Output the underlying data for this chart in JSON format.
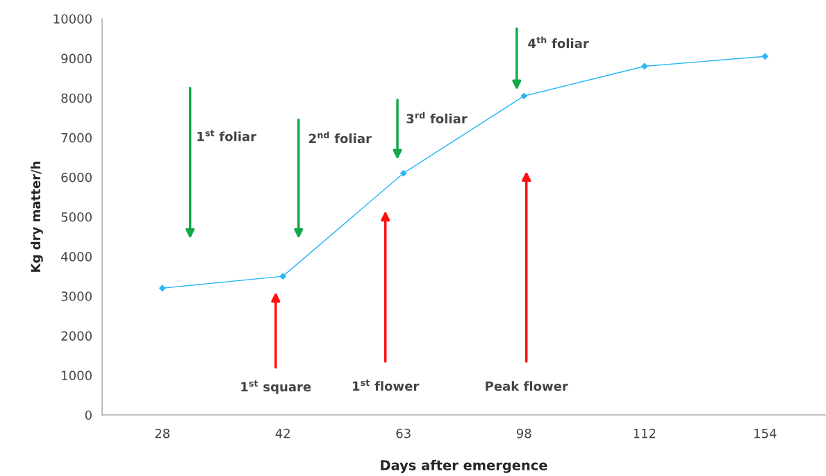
{
  "chart_data": {
    "type": "line",
    "xlabel": "Days after emergence",
    "ylabel": "Kg dry matter/h",
    "categories": [
      "28",
      "42",
      "63",
      "98",
      "112",
      "154"
    ],
    "series": [
      {
        "color": "#29b6f6",
        "values": [
          3200,
          3500,
          6100,
          8050,
          8800,
          9050
        ]
      }
    ],
    "marker": "diamond",
    "line_style": "solid",
    "ylim": [
      0,
      10000
    ],
    "yticks": [
      0,
      1000,
      2000,
      3000,
      4000,
      5000,
      6000,
      7000,
      8000,
      9000,
      10000
    ],
    "grid": false,
    "annotations": [
      "1$^{st}$ foliar",
      "2$^{nd}$ foliar",
      "3$^{rd}$ foliar",
      "4$^{th}$ foliar",
      "1$^{st}$ square",
      "1$^{st}$ flower",
      "Peak flower"
    ]
  }
}
